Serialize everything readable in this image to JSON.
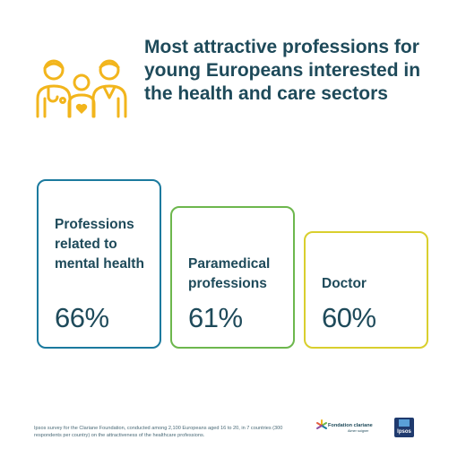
{
  "header": {
    "icon": "family-healthcare-icon",
    "title": "Most attractive professions for young Europeans interested in the health and care sectors"
  },
  "chart_data": {
    "type": "bar",
    "categories": [
      "Professions related to mental health",
      "Paramedical professions",
      "Doctor"
    ],
    "values": [
      66,
      61,
      60
    ],
    "value_labels": [
      "66%",
      "61%",
      "60%"
    ],
    "unit": "%",
    "colors": [
      "#1b7a9e",
      "#6db74d",
      "#d9cf2e"
    ]
  },
  "footnote": "Ipsos survey for the Clariane Foundation, conducted among 2,100 Europeans aged 16 to 20, in 7 countries (300 respondents per country) on the attractiveness of the healthcare professions.",
  "logos": {
    "clariane": "Fondation clariane",
    "clariane_tagline": "Aimer soigner",
    "ipsos": "Ipsos"
  }
}
